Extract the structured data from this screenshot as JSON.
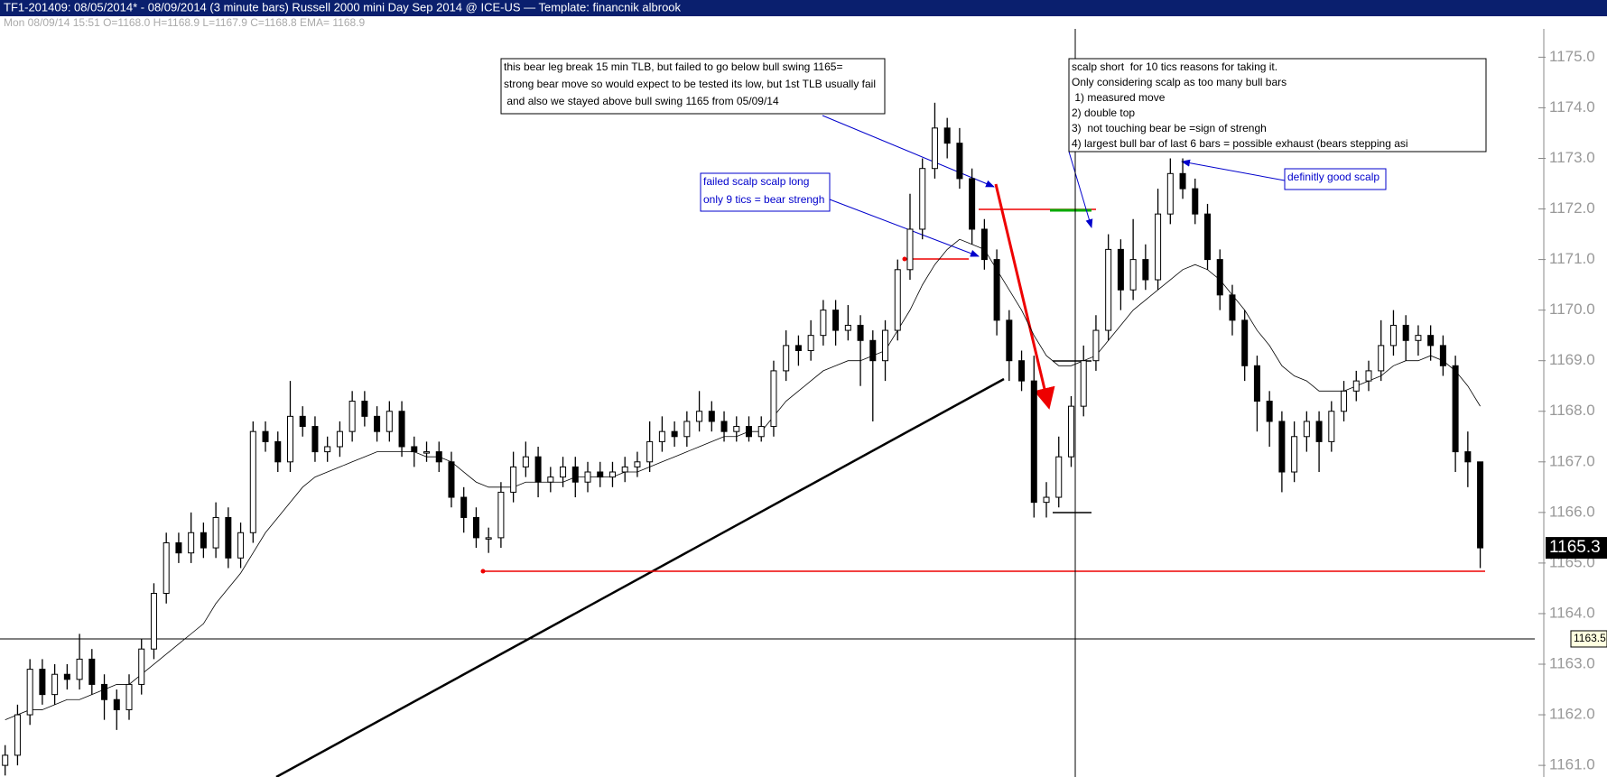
{
  "chart_data": {
    "type": "candlestick",
    "title": "TF1-201409:  08/05/2014* - 08/09/2014  (3 minute bars)   Russell 2000 mini Day Sep 2014 @ ICE-US  —  Template: financnik albrook",
    "subtitle": "Mon  08/09/14 15:51  O=1168.0  H=1168.9  L=1167.9  C=1168.8  EMA= 1168.9",
    "ylim": [
      1160.77,
      1175.56
    ],
    "yticks": [
      {
        "value": 1161,
        "label": "1161.0"
      },
      {
        "value": 1162,
        "label": "1162.0"
      },
      {
        "value": 1163,
        "label": "1163.0"
      },
      {
        "value": 1164,
        "label": "1164.0"
      },
      {
        "value": 1165,
        "label": "1165.0"
      },
      {
        "value": 1166,
        "label": "1166.0"
      },
      {
        "value": 1167,
        "label": "1167.0"
      },
      {
        "value": 1168,
        "label": "1168.0"
      },
      {
        "value": 1169,
        "label": "1169.0"
      },
      {
        "value": 1170,
        "label": "1170.0"
      },
      {
        "value": 1171,
        "label": "1171.0"
      },
      {
        "value": 1172,
        "label": "1172.0"
      },
      {
        "value": 1173,
        "label": "1173.0"
      },
      {
        "value": 1174,
        "label": "1174.0"
      },
      {
        "value": 1175,
        "label": "1175.0"
      }
    ],
    "open": [
      1161.0,
      1161.2,
      1162.0,
      1162.9,
      1162.4,
      1162.8,
      1162.7,
      1163.1,
      1162.6,
      1162.3,
      1162.1,
      1162.6,
      1163.3,
      1164.4,
      1165.4,
      1165.2,
      1165.6,
      1165.3,
      1165.9,
      1165.1,
      1165.6,
      1167.6,
      1167.4,
      1167.0,
      1167.9,
      1167.7,
      1167.2,
      1167.3,
      1167.6,
      1168.2,
      1167.9,
      1167.6,
      1168.0,
      1167.3,
      1167.2,
      1167.2,
      1167.0,
      1166.3,
      1165.9,
      1165.5,
      1165.5,
      1166.4,
      1166.9,
      1167.1,
      1166.6,
      1166.7,
      1166.9,
      1166.6,
      1166.8,
      1166.7,
      1166.8,
      1166.9,
      1167.0,
      1167.4,
      1167.6,
      1167.5,
      1167.8,
      1168.0,
      1167.8,
      1167.6,
      1167.7,
      1167.5,
      1167.7,
      1168.8,
      1169.3,
      1169.2,
      1169.5,
      1170.0,
      1169.6,
      1169.7,
      1169.4,
      1169.0,
      1169.6,
      1170.8,
      1171.6,
      1172.8,
      1173.6,
      1173.3,
      1172.6,
      1171.6,
      1171.0,
      1169.8,
      1169.0,
      1168.6,
      1166.2,
      1166.3,
      1167.1,
      1168.1,
      1169.0,
      1169.6,
      1171.2,
      1170.4,
      1171.0,
      1170.6,
      1171.9,
      1172.7,
      1172.4,
      1171.9,
      1171.0,
      1170.3,
      1169.8,
      1168.9,
      1168.2,
      1167.8,
      1166.8,
      1167.5,
      1167.8,
      1167.4,
      1168.0,
      1168.4,
      1168.6,
      1168.8,
      1169.3,
      1169.7,
      1169.4,
      1169.5,
      1169.3,
      1168.9,
      1167.2,
      1167.0
    ],
    "high": [
      1161.4,
      1162.2,
      1163.1,
      1163.1,
      1163.0,
      1163.0,
      1163.6,
      1163.3,
      1162.8,
      1162.5,
      1162.8,
      1163.5,
      1164.6,
      1165.6,
      1165.6,
      1166.0,
      1165.8,
      1166.2,
      1166.1,
      1165.8,
      1167.8,
      1167.8,
      1167.6,
      1168.6,
      1168.1,
      1167.9,
      1167.5,
      1167.8,
      1168.4,
      1168.4,
      1168.1,
      1168.2,
      1168.2,
      1167.5,
      1167.4,
      1167.4,
      1167.2,
      1166.5,
      1166.1,
      1165.7,
      1166.6,
      1167.2,
      1167.4,
      1167.3,
      1166.9,
      1167.1,
      1167.1,
      1167.0,
      1167.0,
      1167.0,
      1167.1,
      1167.2,
      1167.8,
      1167.9,
      1167.8,
      1168.0,
      1168.4,
      1168.2,
      1168.0,
      1167.9,
      1167.9,
      1167.9,
      1169.0,
      1169.6,
      1169.5,
      1169.8,
      1170.2,
      1170.2,
      1170.1,
      1169.9,
      1169.6,
      1169.8,
      1171.0,
      1172.3,
      1173.0,
      1174.1,
      1173.8,
      1173.6,
      1172.8,
      1171.8,
      1171.2,
      1170.0,
      1169.2,
      1169.1,
      1166.6,
      1167.5,
      1168.3,
      1169.3,
      1169.9,
      1171.5,
      1171.4,
      1171.8,
      1171.3,
      1172.4,
      1173.0,
      1173.0,
      1172.6,
      1172.1,
      1171.2,
      1170.5,
      1170.0,
      1169.1,
      1168.4,
      1168.0,
      1167.8,
      1168.0,
      1168.0,
      1168.2,
      1168.6,
      1168.8,
      1169.0,
      1169.8,
      1170.0,
      1169.9,
      1169.7,
      1169.7,
      1169.5,
      1169.1,
      1167.6,
      1167.0
    ],
    "low": [
      1160.8,
      1161.0,
      1161.8,
      1162.2,
      1162.2,
      1162.5,
      1162.5,
      1162.4,
      1161.9,
      1161.7,
      1161.9,
      1162.4,
      1163.1,
      1164.2,
      1165.0,
      1165.0,
      1165.1,
      1165.1,
      1164.9,
      1164.9,
      1165.4,
      1167.2,
      1166.8,
      1166.8,
      1167.5,
      1167.0,
      1167.0,
      1167.1,
      1167.4,
      1167.7,
      1167.4,
      1167.4,
      1167.1,
      1166.9,
      1167.0,
      1166.8,
      1166.1,
      1165.6,
      1165.3,
      1165.2,
      1165.3,
      1166.2,
      1166.7,
      1166.3,
      1166.4,
      1166.5,
      1166.3,
      1166.4,
      1166.5,
      1166.5,
      1166.6,
      1166.7,
      1166.8,
      1167.2,
      1167.3,
      1167.3,
      1167.6,
      1167.6,
      1167.4,
      1167.4,
      1167.4,
      1167.4,
      1167.5,
      1168.6,
      1168.9,
      1169.0,
      1169.3,
      1169.3,
      1169.4,
      1168.5,
      1167.8,
      1168.6,
      1169.4,
      1170.6,
      1171.4,
      1172.6,
      1173.0,
      1172.4,
      1171.3,
      1170.8,
      1169.5,
      1168.6,
      1168.4,
      1165.9,
      1165.9,
      1166.1,
      1166.9,
      1167.9,
      1168.8,
      1169.4,
      1170.0,
      1170.2,
      1170.4,
      1170.4,
      1171.7,
      1172.2,
      1171.7,
      1170.8,
      1170.0,
      1169.5,
      1168.6,
      1167.6,
      1167.3,
      1166.4,
      1166.6,
      1167.2,
      1166.8,
      1167.2,
      1167.8,
      1168.2,
      1168.4,
      1168.6,
      1169.1,
      1169.0,
      1169.1,
      1169.0,
      1168.7,
      1166.8,
      1166.5,
      1164.9
    ],
    "close": [
      1161.2,
      1162.0,
      1162.9,
      1162.4,
      1162.8,
      1162.7,
      1163.1,
      1162.6,
      1162.3,
      1162.1,
      1162.6,
      1163.3,
      1164.4,
      1165.4,
      1165.2,
      1165.6,
      1165.3,
      1165.9,
      1165.1,
      1165.6,
      1167.6,
      1167.4,
      1167.0,
      1167.9,
      1167.7,
      1167.2,
      1167.3,
      1167.6,
      1168.2,
      1167.9,
      1167.6,
      1168.0,
      1167.3,
      1167.2,
      1167.2,
      1167.0,
      1166.3,
      1165.9,
      1165.5,
      1165.5,
      1166.4,
      1166.9,
      1167.1,
      1166.6,
      1166.7,
      1166.9,
      1166.6,
      1166.8,
      1166.7,
      1166.8,
      1166.9,
      1167.0,
      1167.4,
      1167.6,
      1167.5,
      1167.8,
      1168.0,
      1167.8,
      1167.6,
      1167.7,
      1167.5,
      1167.7,
      1168.8,
      1169.3,
      1169.2,
      1169.5,
      1170.0,
      1169.6,
      1169.7,
      1169.4,
      1169.0,
      1169.6,
      1170.8,
      1171.6,
      1172.8,
      1173.6,
      1173.3,
      1172.6,
      1171.6,
      1171.0,
      1169.8,
      1169.0,
      1168.6,
      1166.2,
      1166.3,
      1167.1,
      1168.1,
      1169.0,
      1169.6,
      1171.2,
      1170.4,
      1171.0,
      1170.6,
      1171.9,
      1172.7,
      1172.4,
      1171.9,
      1171.0,
      1170.3,
      1169.8,
      1168.9,
      1168.2,
      1167.8,
      1166.8,
      1167.5,
      1167.8,
      1167.4,
      1168.0,
      1168.4,
      1168.6,
      1168.8,
      1169.3,
      1169.7,
      1169.4,
      1169.5,
      1169.3,
      1168.9,
      1167.2,
      1167.0,
      1165.3
    ],
    "ema": [
      1161.9,
      1162.0,
      1162.1,
      1162.1,
      1162.2,
      1162.3,
      1162.3,
      1162.4,
      1162.5,
      1162.6,
      1162.6,
      1162.8,
      1163.0,
      1163.2,
      1163.4,
      1163.6,
      1163.8,
      1164.2,
      1164.5,
      1164.8,
      1165.2,
      1165.6,
      1165.9,
      1166.2,
      1166.5,
      1166.7,
      1166.8,
      1166.9,
      1167.0,
      1167.1,
      1167.2,
      1167.2,
      1167.2,
      1167.2,
      1167.1,
      1167.1,
      1167.0,
      1166.8,
      1166.6,
      1166.5,
      1166.5,
      1166.5,
      1166.6,
      1166.6,
      1166.6,
      1166.6,
      1166.7,
      1166.7,
      1166.7,
      1166.7,
      1166.8,
      1166.8,
      1166.9,
      1167.0,
      1167.1,
      1167.2,
      1167.3,
      1167.4,
      1167.5,
      1167.5,
      1167.6,
      1167.6,
      1167.9,
      1168.2,
      1168.4,
      1168.6,
      1168.8,
      1168.9,
      1169.0,
      1169.0,
      1169.1,
      1169.2,
      1169.6,
      1170.0,
      1170.5,
      1170.9,
      1171.2,
      1171.4,
      1171.3,
      1171.2,
      1170.8,
      1170.4,
      1170.0,
      1169.5,
      1169.1,
      1168.9,
      1168.9,
      1169.0,
      1169.1,
      1169.4,
      1169.7,
      1170.0,
      1170.2,
      1170.4,
      1170.6,
      1170.8,
      1170.9,
      1170.8,
      1170.6,
      1170.3,
      1170.0,
      1169.6,
      1169.3,
      1168.9,
      1168.7,
      1168.6,
      1168.4,
      1168.4,
      1168.4,
      1168.5,
      1168.6,
      1168.7,
      1168.9,
      1169.0,
      1169.0,
      1169.1,
      1169.0,
      1168.8,
      1168.5,
      1168.1
    ],
    "last_price": 1165.3,
    "crosshair_price": 1163.5,
    "annotations": [
      {
        "lines": [
          "this bear leg break 15 min TLB, but failed to go below bull swing 1165=",
          "strong bear move so would expect to be tested its low, but 1st TLB usually fail",
          " and also we stayed above bull swing 1165 from 05/09/14"
        ]
      },
      {
        "lines": [
          "failed scalp scalp long",
          "only 9 tics = bear strengh"
        ]
      },
      {
        "lines": [
          "scalp short  for 10 tics reasons for taking it.",
          "Only considering scalp as too many bull bars",
          " 1) measured move",
          "2) double top",
          "3)  not touching bear be =sign of strengh",
          "4) largest bull bar of last 6 bars = possible exhaust (bears stepping asi"
        ]
      },
      {
        "lines": [
          "definitly good scalp"
        ]
      }
    ]
  }
}
